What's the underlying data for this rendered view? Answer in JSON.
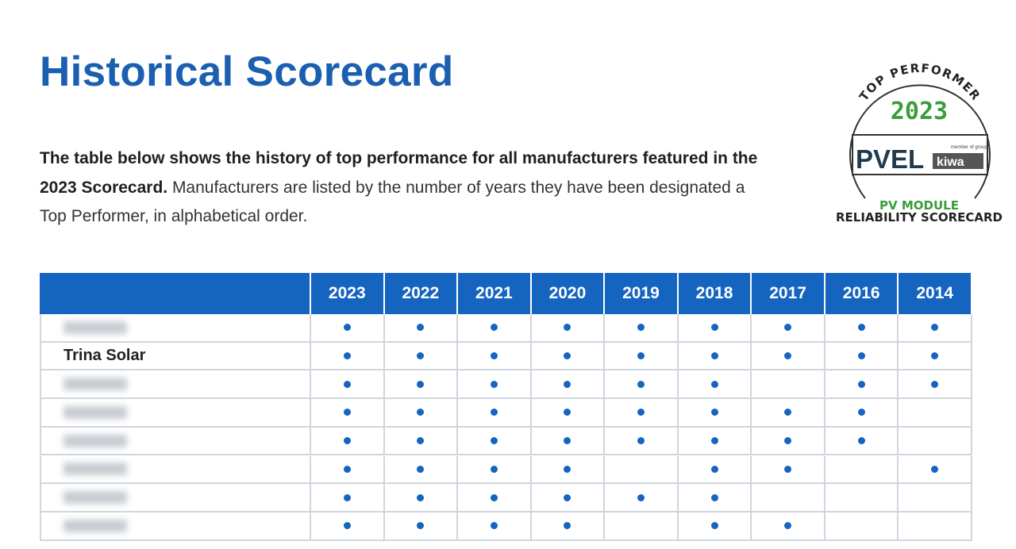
{
  "header": {
    "title": "Historical Scorecard"
  },
  "intro": {
    "bold": "The table below shows the history of top performance for all manufacturers featured in the 2023 Scorecard.",
    "text": " Manufacturers are listed by the number of years they have been designated a Top Performer, in alphabetical order."
  },
  "badge": {
    "arc": "TOP PERFORMER",
    "year": "2023",
    "brand": "PVEL",
    "group_note": "member of group",
    "group": "kiwa",
    "line1": "PV MODULE",
    "line2": "RELIABILITY SCORECARD"
  },
  "table": {
    "columns": [
      "2023",
      "2022",
      "2021",
      "2020",
      "2019",
      "2018",
      "2017",
      "2016",
      "2014"
    ],
    "rows": [
      {
        "name": null,
        "cells": [
          true,
          true,
          true,
          true,
          true,
          true,
          true,
          true,
          true
        ]
      },
      {
        "name": "Trina Solar",
        "cells": [
          true,
          true,
          true,
          true,
          true,
          true,
          true,
          true,
          true
        ]
      },
      {
        "name": null,
        "cells": [
          true,
          true,
          true,
          true,
          true,
          true,
          false,
          true,
          true
        ]
      },
      {
        "name": null,
        "cells": [
          true,
          true,
          true,
          true,
          true,
          true,
          true,
          true,
          false
        ]
      },
      {
        "name": null,
        "cells": [
          true,
          true,
          true,
          true,
          true,
          true,
          true,
          true,
          false
        ]
      },
      {
        "name": null,
        "cells": [
          true,
          true,
          true,
          true,
          false,
          true,
          true,
          false,
          true
        ]
      },
      {
        "name": null,
        "cells": [
          true,
          true,
          true,
          true,
          true,
          true,
          false,
          false,
          false
        ]
      },
      {
        "name": null,
        "cells": [
          true,
          true,
          true,
          true,
          false,
          true,
          true,
          false,
          false
        ]
      }
    ]
  }
}
